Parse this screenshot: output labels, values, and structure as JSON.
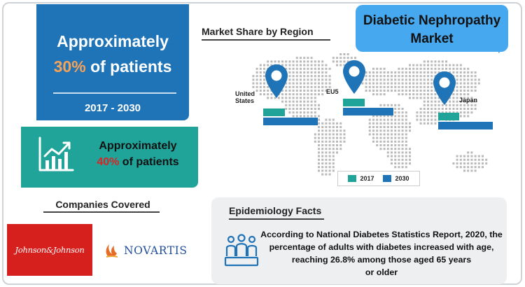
{
  "title": {
    "line1": "Diabetic Nephropathy",
    "line2": "Market"
  },
  "stat_blue": {
    "prefix": "Approximately",
    "percent": "30%",
    "suffix": " of patients",
    "years": "2017 - 2030"
  },
  "stat_teal": {
    "prefix": "Approximately",
    "percent": "40%",
    "suffix": " of patients"
  },
  "companies": {
    "title": "Companies Covered",
    "items": [
      {
        "name": "Johnson&Johnson",
        "icon": "johnson-johnson-logo"
      },
      {
        "name": "NOVARTIS",
        "icon": "novartis-flame-icon"
      }
    ]
  },
  "market_share": {
    "title": "Market Share by Region",
    "regions": [
      {
        "label_line1": "United",
        "label_line2": "States",
        "v2017": 0.4,
        "v2030": 1.0
      },
      {
        "label_line1": "EU5",
        "label_line2": "",
        "v2017": 0.4,
        "v2030": 0.92
      },
      {
        "label_line1": "Japan",
        "label_line2": "",
        "v2017": 0.38,
        "v2030": 1.0
      }
    ],
    "legend": [
      {
        "label": "2017",
        "color": "#20a49a"
      },
      {
        "label": "2030",
        "color": "#1f73b7"
      }
    ]
  },
  "epidemiology": {
    "title": "Epidemiology Facts",
    "lines": [
      "According to National Diabetes Statistics Report, 2020, the",
      "percentage of adults with diabetes increased with age,",
      "reaching 26.8% among those aged 65 years",
      "or older"
    ]
  },
  "colors": {
    "blue": "#1f73b7",
    "teal": "#20a49a",
    "accent_orange": "#f5a25a",
    "accent_red": "#d92424",
    "bubble": "#46a8ef"
  }
}
